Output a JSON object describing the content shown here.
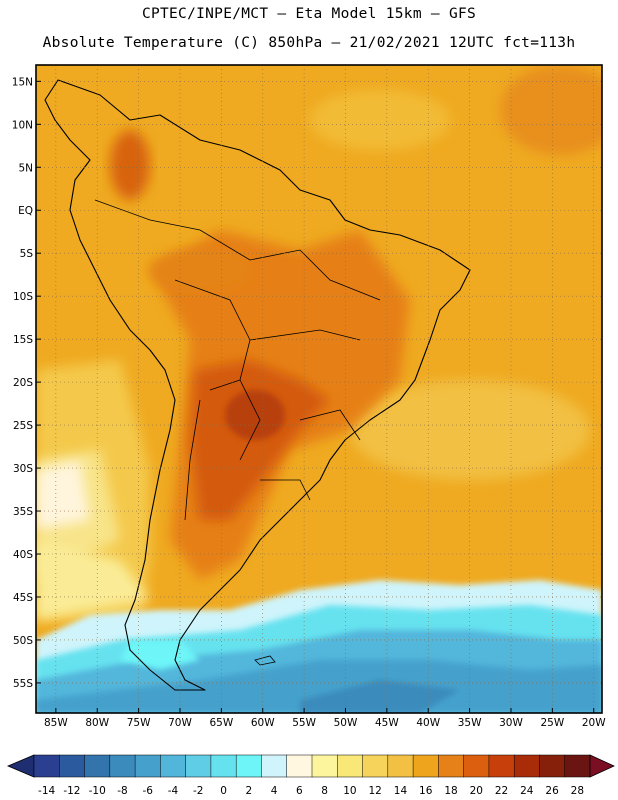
{
  "title": {
    "line1": "CPTEC/INPE/MCT –  Eta Model 15km – GFS",
    "line2": "Absolute Temperature (C) 850hPa – 21/02/2021 12UTC fct=113h"
  },
  "map": {
    "region": "South America",
    "lat_labels": [
      "15N",
      "10N",
      "5N",
      "EQ",
      "5S",
      "10S",
      "15S",
      "20S",
      "25S",
      "30S",
      "35S",
      "40S",
      "45S",
      "50S",
      "55S"
    ],
    "lat_values": [
      15,
      10,
      5,
      0,
      -5,
      -10,
      -15,
      -20,
      -25,
      -30,
      -35,
      -40,
      -45,
      -50,
      -55
    ],
    "lon_labels": [
      "85W",
      "80W",
      "75W",
      "70W",
      "65W",
      "60W",
      "55W",
      "50W",
      "45W",
      "40W",
      "35W",
      "30W",
      "25W",
      "20W"
    ],
    "lon_values": [
      -85,
      -80,
      -75,
      -70,
      -65,
      -60,
      -55,
      -50,
      -45,
      -40,
      -35,
      -30,
      -25,
      -20
    ]
  },
  "colorbar": {
    "labels": [
      "-14",
      "-12",
      "-10",
      "-8",
      "-6",
      "-4",
      "-2",
      "0",
      "2",
      "4",
      "6",
      "8",
      "10",
      "12",
      "14",
      "16",
      "18",
      "20",
      "22",
      "24",
      "26",
      "28"
    ],
    "colors": [
      "#2a3f8f",
      "#2c5a9e",
      "#3474ad",
      "#3b8bbc",
      "#45a1cc",
      "#52b6db",
      "#5fcde6",
      "#66e2ef",
      "#6df5f8",
      "#cff4fb",
      "#fff7e0",
      "#fdf59d",
      "#f9e778",
      "#f6d45c",
      "#f2c042",
      "#eea41c",
      "#e68019",
      "#dc5f0f",
      "#c7400c",
      "#a82c08",
      "#87200a",
      "#6b1512"
    ],
    "underflow_color": "#1f2e70",
    "overflow_color": "#7a0f24"
  }
}
